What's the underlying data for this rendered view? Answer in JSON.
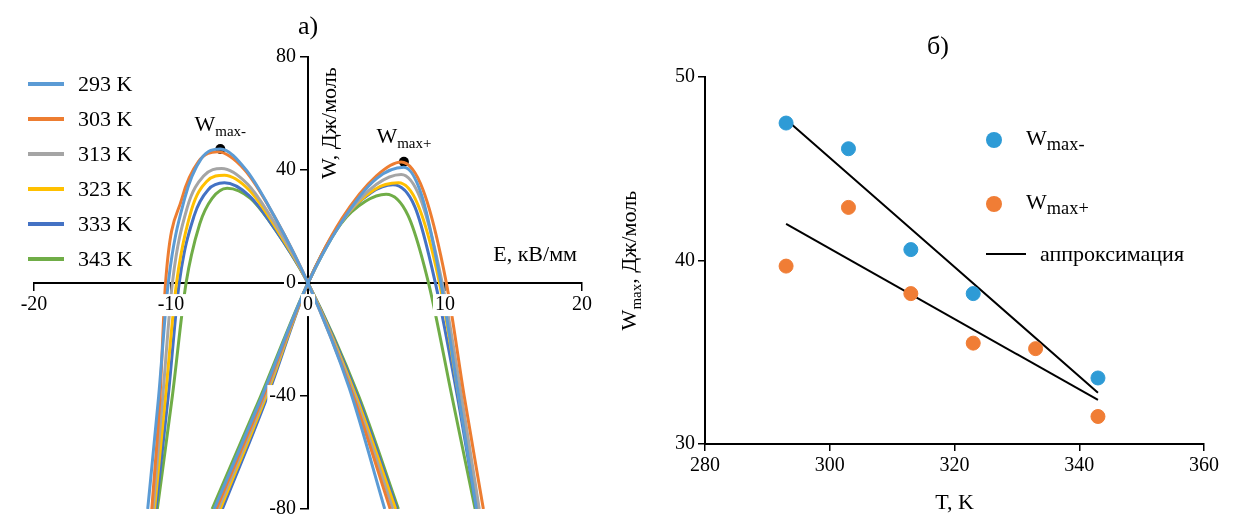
{
  "chart_data": [
    {
      "type": "line",
      "title": "а)",
      "xlabel": "E, кВ/мм",
      "ylabel": "W, Дж/моль",
      "xlim": [
        -20,
        20
      ],
      "xticks": [
        -20,
        -10,
        0,
        10,
        20
      ],
      "ylim": [
        -80,
        80
      ],
      "yticks": [
        -80,
        -40,
        0,
        40,
        80
      ],
      "legend": "top left",
      "series": [
        {
          "name": "293 K",
          "color": "#5b9bd5",
          "x": [
            -11.7,
            -10.9,
            -10.2,
            -9,
            -7.8,
            -6.4,
            -4.5,
            -2.5,
            0,
            3,
            5.6
          ],
          "values": [
            -80,
            -40,
            0,
            30,
            44,
            47.5,
            40,
            24,
            0,
            -37,
            -80
          ]
        },
        {
          "color": "#5b9bd5",
          "x": [
            -6.85,
            -3.35,
            0,
            2.5,
            5,
            7,
            8.3,
            9.7,
            11,
            12.3
          ],
          "values": [
            -80,
            -40,
            0,
            22,
            37,
            41,
            31,
            0,
            -40,
            -80
          ]
        },
        {
          "name": "303 K",
          "color": "#ed7d31",
          "x": [
            -11.4,
            -10.8,
            -10.4,
            -9.2,
            -8,
            -6.6,
            -4.6,
            -2.5,
            0,
            3.3,
            6
          ],
          "values": [
            -80,
            -40,
            0,
            30,
            43,
            46.5,
            40,
            24,
            0,
            -40,
            -80
          ]
        },
        {
          "color": "#ed7d31",
          "x": [
            -6.7,
            -3.25,
            0,
            2.5,
            5,
            6.8,
            8.4,
            10.1,
            11.4,
            12.8
          ],
          "values": [
            -80,
            -40,
            0,
            23,
            38,
            42.9,
            33,
            0,
            -40,
            -80
          ]
        },
        {
          "name": "313 K",
          "color": "#a5a5a5",
          "x": [
            -11.3,
            -10.6,
            -9.9,
            -8.8,
            -7.6,
            -6.3,
            -4.4,
            -2.4,
            0,
            3.4,
            6.2
          ],
          "values": [
            -80,
            -40,
            0,
            27,
            38,
            40.6,
            35,
            21,
            0,
            -40,
            -80
          ]
        },
        {
          "color": "#a5a5a5",
          "x": [
            -6.55,
            -3.15,
            0,
            2.5,
            5,
            6.8,
            8.2,
            9.8,
            11.2,
            12.5
          ],
          "values": [
            -80,
            -40,
            0,
            22,
            35,
            38.5,
            30,
            0,
            -40,
            -80
          ]
        },
        {
          "name": "323 K",
          "color": "#ffc000",
          "x": [
            -11.2,
            -10.4,
            -9.6,
            -8.5,
            -7.4,
            -6.1,
            -4.3,
            -2.4,
            0,
            3.5,
            6.4
          ],
          "values": [
            -80,
            -40,
            0,
            26,
            36,
            38.2,
            33,
            20,
            0,
            -40,
            -80
          ]
        },
        {
          "color": "#ffc000",
          "x": [
            -6.4,
            -3.05,
            0,
            2.5,
            4.8,
            6.6,
            8,
            9.6,
            11,
            12.4
          ],
          "values": [
            -80,
            -40,
            0,
            22,
            33,
            35.5,
            28,
            0,
            -40,
            -80
          ]
        },
        {
          "name": "333 K",
          "color": "#4472c4",
          "x": [
            -11.1,
            -10.2,
            -9.4,
            -8.3,
            -7.3,
            -6.1,
            -4.3,
            -2.4,
            0,
            3.6,
            6.5
          ],
          "values": [
            -80,
            -40,
            0,
            24,
            33,
            35.5,
            31,
            19,
            0,
            -40,
            -80
          ]
        },
        {
          "color": "#4472c4",
          "x": [
            -6.25,
            -2.95,
            0,
            2.5,
            4.6,
            6.2,
            7.8,
            9.3,
            10.9,
            12.3
          ],
          "values": [
            -80,
            -40,
            0,
            22,
            32,
            34.8,
            27,
            0,
            -40,
            -80
          ]
        },
        {
          "name": "343 K",
          "color": "#70ad47",
          "x": [
            -11,
            -9.9,
            -8.9,
            -7.9,
            -7,
            -5.9,
            -4.2,
            -2.4,
            0,
            3.7,
            6.6
          ],
          "values": [
            -80,
            -40,
            0,
            21,
            30,
            33.6,
            30,
            19,
            0,
            -40,
            -80
          ]
        },
        {
          "color": "#70ad47",
          "x": [
            -7,
            -3.45,
            0,
            2.4,
            4.2,
            5.7,
            7.3,
            8.8,
            10.5,
            12.2
          ],
          "values": [
            -80,
            -40,
            0,
            21,
            29,
            31.5,
            24,
            0,
            -40,
            -80
          ]
        }
      ],
      "annotations": [
        {
          "text": "W$_{max-}$",
          "x": -6.4,
          "y": 47.5
        },
        {
          "text": "W$_{max+}$",
          "x": 7,
          "y": 43
        }
      ]
    },
    {
      "type": "scatter",
      "title": "б)",
      "xlabel": "T, K",
      "ylabel": "W$_{max}$, Дж/моль",
      "xlim": [
        280,
        360
      ],
      "xticks": [
        280,
        300,
        320,
        340,
        360
      ],
      "ylim": [
        30,
        50
      ],
      "yticks": [
        30,
        40,
        50
      ],
      "legend": "top right",
      "series": [
        {
          "name": "W$_{max-}$",
          "type": "scatter",
          "color": "#2e9bd6",
          "x": [
            293,
            303,
            313,
            323,
            343
          ],
          "values": [
            47.5,
            46.1,
            40.6,
            38.2,
            33.6
          ]
        },
        {
          "name": "W$_{max+}$",
          "type": "scatter",
          "color": "#f07d35",
          "x": [
            293,
            303,
            313,
            323,
            333,
            343
          ],
          "values": [
            39.7,
            42.9,
            38.2,
            35.5,
            35.2,
            31.5
          ]
        },
        {
          "name": "аппроксимация",
          "type": "line",
          "color": "#000000",
          "x": [
            293,
            343
          ],
          "values": [
            47.7,
            32.8
          ]
        },
        {
          "type": "line",
          "color": "#000000",
          "x": [
            293,
            343
          ],
          "values": [
            42,
            32.4
          ]
        }
      ]
    }
  ]
}
